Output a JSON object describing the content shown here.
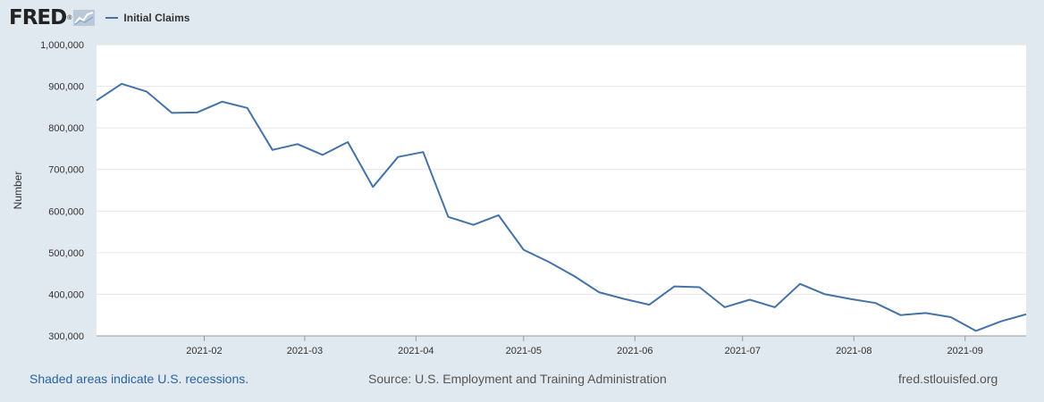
{
  "header": {
    "logo_text": "FRED",
    "logo_reg": "®",
    "legend_label": "Initial Claims"
  },
  "colors": {
    "line": "#4572a7",
    "plot_background": "#ffffff",
    "page_background": "#e1e9f0",
    "grid": "#e6e6e6",
    "link": "#2a63a0"
  },
  "footer": {
    "recession_note": "Shaded areas indicate U.S. recessions.",
    "source": "Source: U.S. Employment and Training Administration",
    "site": "fred.stlouisfed.org"
  },
  "chart_data": {
    "type": "line",
    "title": "",
    "xlabel": "",
    "ylabel": "Number",
    "ylim": [
      300000,
      1000000
    ],
    "yticks": [
      300000,
      400000,
      500000,
      600000,
      700000,
      800000,
      900000,
      1000000
    ],
    "ytick_labels": [
      "300,000",
      "400,000",
      "500,000",
      "600,000",
      "700,000",
      "800,000",
      "900,000",
      "1,000,000"
    ],
    "xlim": [
      "2021-01-02",
      "2021-09-18"
    ],
    "xticks": [
      "2021-02-01",
      "2021-03-01",
      "2021-04-01",
      "2021-05-01",
      "2021-06-01",
      "2021-07-01",
      "2021-08-01",
      "2021-09-01"
    ],
    "xtick_labels": [
      "2021-02",
      "2021-03",
      "2021-04",
      "2021-05",
      "2021-06",
      "2021-07",
      "2021-08",
      "2021-09"
    ],
    "grid": true,
    "legend_position": "top-left",
    "series": [
      {
        "name": "Initial Claims",
        "x": [
          "2021-01-02",
          "2021-01-09",
          "2021-01-16",
          "2021-01-23",
          "2021-01-30",
          "2021-02-06",
          "2021-02-13",
          "2021-02-20",
          "2021-02-27",
          "2021-03-06",
          "2021-03-13",
          "2021-03-20",
          "2021-03-27",
          "2021-04-03",
          "2021-04-10",
          "2021-04-17",
          "2021-04-24",
          "2021-05-01",
          "2021-05-08",
          "2021-05-15",
          "2021-05-22",
          "2021-05-29",
          "2021-06-05",
          "2021-06-12",
          "2021-06-19",
          "2021-06-26",
          "2021-07-03",
          "2021-07-10",
          "2021-07-17",
          "2021-07-24",
          "2021-07-31",
          "2021-08-07",
          "2021-08-14",
          "2021-08-21",
          "2021-08-28",
          "2021-09-04",
          "2021-09-11",
          "2021-09-18"
        ],
        "values": [
          866000,
          906000,
          887000,
          836000,
          837000,
          863000,
          848000,
          747000,
          761000,
          735000,
          766000,
          658000,
          730000,
          742000,
          586000,
          567000,
          590000,
          507000,
          478000,
          444000,
          405000,
          389000,
          375000,
          419000,
          417000,
          369000,
          387000,
          369000,
          425000,
          400000,
          389000,
          379000,
          350000,
          355000,
          345000,
          312000,
          335000,
          352000
        ]
      }
    ]
  }
}
